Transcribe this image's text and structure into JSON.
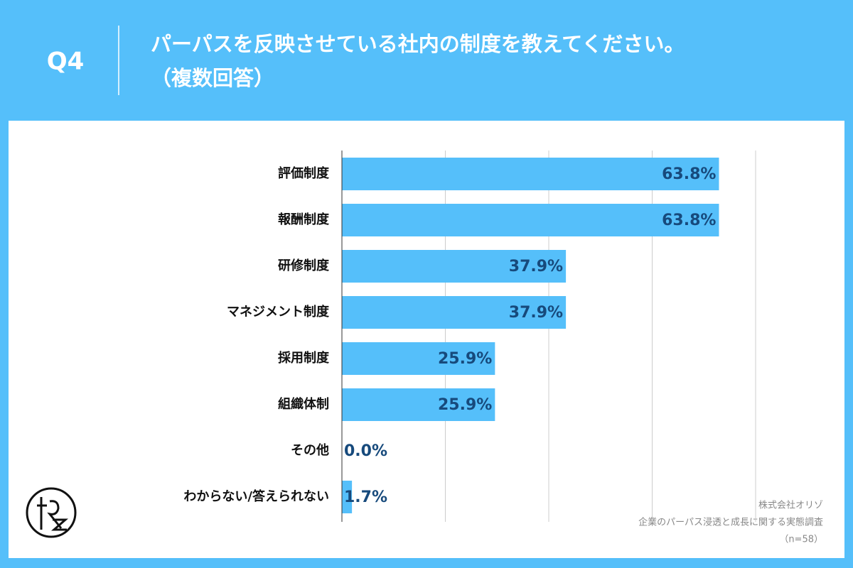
{
  "chart_data": {
    "type": "bar",
    "orientation": "horizontal",
    "question": "Q4",
    "title": "パーパスを反映させている社内の制度を教えてください。",
    "subtitle": "（複数回答）",
    "categories": [
      "評価制度",
      "報酬制度",
      "研修制度",
      "マネジメント制度",
      "採用制度",
      "組織体制",
      "その他",
      "わからない/答えられない"
    ],
    "values": [
      63.8,
      63.8,
      37.9,
      37.9,
      25.9,
      25.9,
      0.0,
      1.7
    ],
    "value_labels": [
      "63.8%",
      "63.8%",
      "37.9%",
      "37.9%",
      "25.9%",
      "25.9%",
      "0.0%",
      "1.7%"
    ],
    "color": "#55bffa",
    "xlim": [
      0,
      70
    ],
    "xticks": [
      0,
      17.5,
      35,
      52.5,
      70
    ],
    "grid": true,
    "source": [
      "株式会社オリゾ",
      "企業のパーパス浸透と成長に関する実態調査",
      "（n=58）"
    ]
  }
}
